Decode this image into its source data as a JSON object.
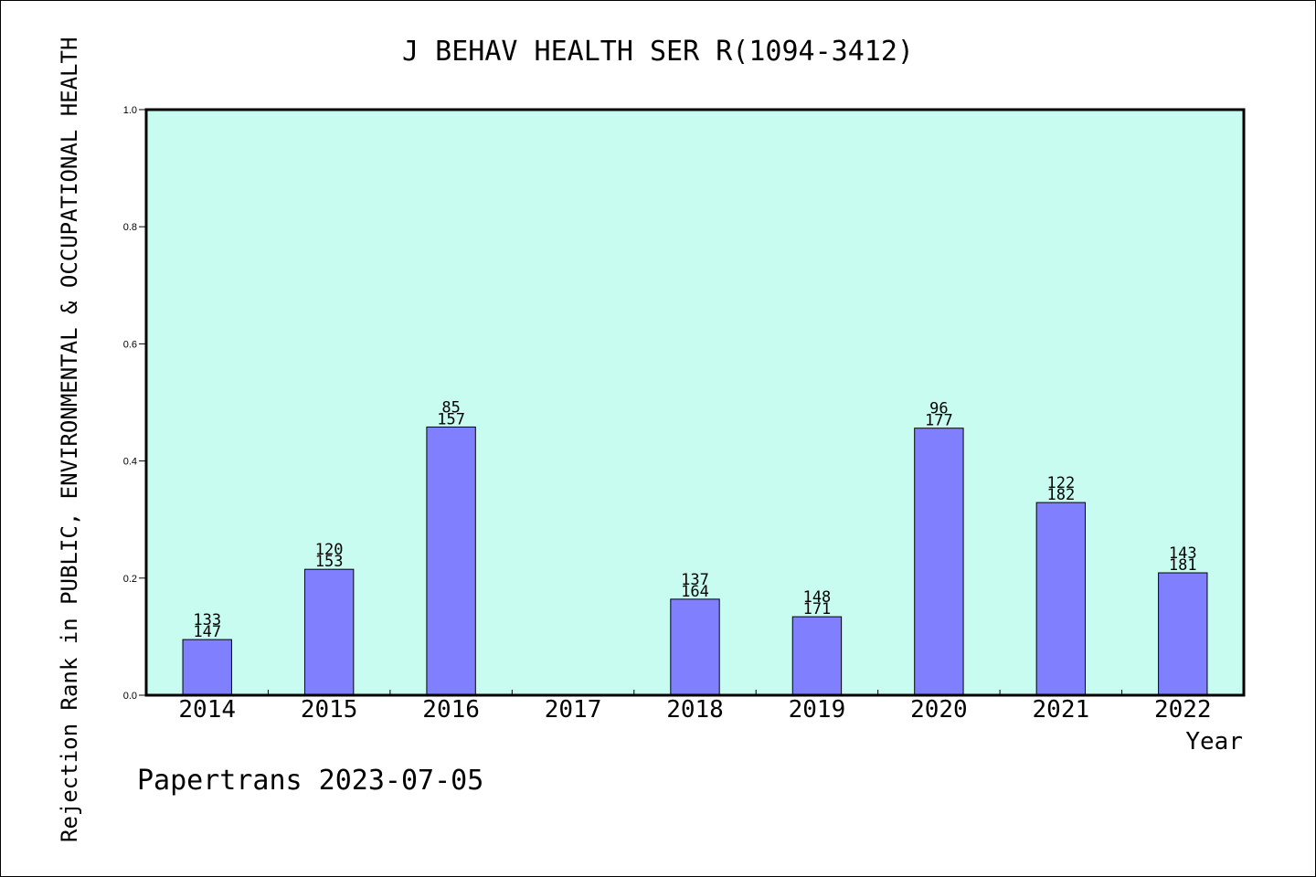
{
  "chart_data": {
    "type": "bar",
    "title": "J BEHAV HEALTH SER R(1094-3412)",
    "xlabel": "Year",
    "ylabel": "Rejection Rank in PUBLIC, ENVIRONMENTAL & OCCUPATIONAL HEALTH",
    "footer": "Papertrans 2023-07-05",
    "categories": [
      "2014",
      "2015",
      "2016",
      "2017",
      "2018",
      "2019",
      "2020",
      "2021",
      "2022"
    ],
    "values": [
      0.095,
      0.215,
      0.458,
      null,
      0.164,
      0.134,
      0.456,
      0.329,
      0.209
    ],
    "rank_labels": [
      "133",
      "120",
      "85",
      "",
      "137",
      "148",
      "96",
      "122",
      "143"
    ],
    "total_labels": [
      "147",
      "153",
      "157",
      "",
      "164",
      "171",
      "177",
      "182",
      "181"
    ],
    "ylim": [
      0,
      1.0
    ],
    "yticks": [
      "0.0",
      "0.2",
      "0.4",
      "0.6",
      "0.8",
      "1.0"
    ],
    "ytick_values": [
      0,
      0.2,
      0.4,
      0.6,
      0.8,
      1.0
    ],
    "grid": false,
    "colors": {
      "plot_background": "#c8fcf0",
      "bar_fill": "#8080ff",
      "bar_stroke": "#000000",
      "axis": "#000000"
    }
  }
}
